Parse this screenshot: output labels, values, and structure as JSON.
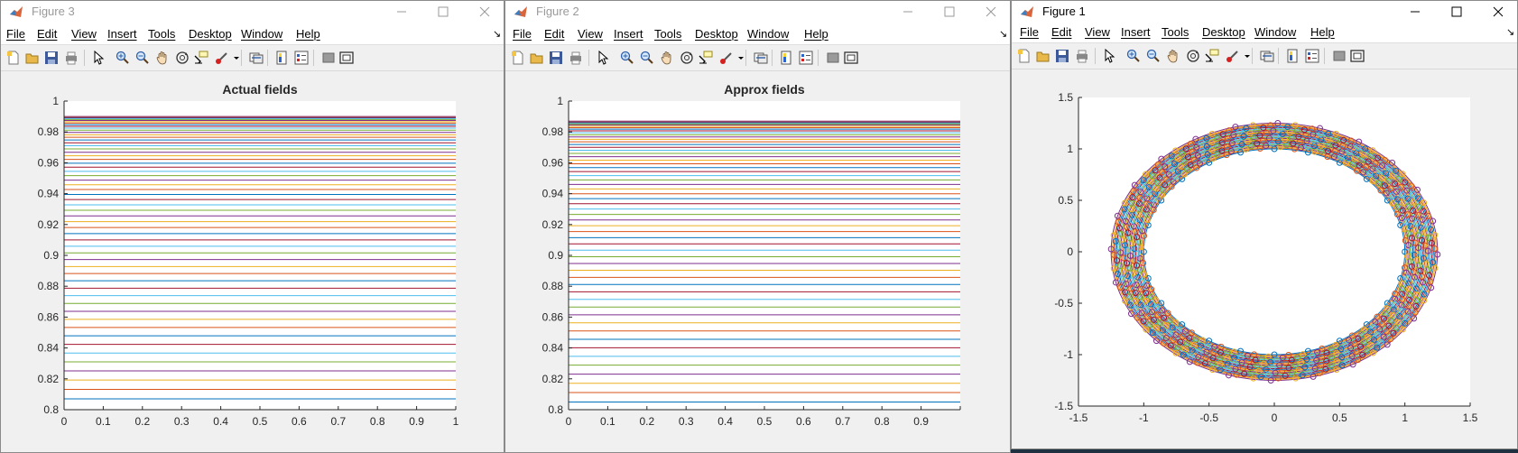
{
  "windows": [
    {
      "title": "Figure 3",
      "active": false,
      "menu": [
        "File",
        "Edit",
        "View",
        "Insert",
        "Tools",
        "Desktop",
        "Window",
        "Help"
      ]
    },
    {
      "title": "Figure 2",
      "active": false,
      "menu": [
        "File",
        "Edit",
        "View",
        "Insert",
        "Tools",
        "Desktop",
        "Window",
        "Help"
      ]
    },
    {
      "title": "Figure 1",
      "active": true,
      "menu": [
        "File",
        "Edit",
        "View",
        "Insert",
        "Tools",
        "Desktop",
        "Window",
        "Help"
      ]
    }
  ],
  "window_controls": [
    "minimize-icon",
    "maximize-icon",
    "close-icon"
  ],
  "toolbar_icons": [
    "new-figure-icon",
    "open-file-icon",
    "save-figure-icon",
    "print-figure-icon",
    "edit-plot-icon",
    "zoom-in-icon",
    "zoom-out-icon",
    "pan-icon",
    "rotate-3d-icon",
    "data-cursor-icon",
    "brush-icon",
    "brush-dropdown-icon",
    "link-plot-icon",
    "insert-colorbar-icon",
    "insert-legend-icon",
    "hide-plot-tools-icon",
    "show-plot-tools-icon"
  ],
  "colors": {
    "matlab_order": [
      "#0072BD",
      "#D95319",
      "#EDB120",
      "#7E2F8E",
      "#77AC30",
      "#4DBEEE",
      "#A2142F"
    ],
    "axes_bg": "#ffffff",
    "figure_bg": "#f0f0f0"
  },
  "chart_data": [
    {
      "type": "line",
      "title": "Actual fields",
      "xlim": [
        0,
        1
      ],
      "ylim": [
        0.8,
        1
      ],
      "xticks": [
        "0",
        "0.1",
        "0.2",
        "0.3",
        "0.4",
        "0.5",
        "0.6",
        "0.7",
        "0.8",
        "0.9",
        "1"
      ],
      "yticks": [
        "0.8",
        "0.82",
        "0.84",
        "0.86",
        "0.88",
        "0.9",
        "0.92",
        "0.94",
        "0.96",
        "0.98",
        "1"
      ],
      "description_of_series": "about 60 horizontal constant lines spanning x 0 to 1",
      "line_levels": {
        "min": 0.807,
        "max": 0.99,
        "count": 60,
        "spacing": "quadratic"
      }
    },
    {
      "type": "line",
      "title": "Approx fields",
      "xlim": [
        0,
        1
      ],
      "ylim": [
        0.8,
        1
      ],
      "xticks": [
        "0",
        "0.1",
        "0.2",
        "0.3",
        "0.4",
        "0.5",
        "0.6",
        "0.7",
        "0.8",
        "0.9",
        ""
      ],
      "yticks": [
        "0.8",
        "0.82",
        "0.84",
        "0.86",
        "0.88",
        "0.9",
        "0.92",
        "0.94",
        "0.96",
        "0.98",
        "1"
      ],
      "description_of_series": "about 60 horizontal constant lines spanning x 0 to 1",
      "line_levels": {
        "min": 0.805,
        "max": 0.987,
        "count": 60,
        "spacing": "quadratic"
      }
    },
    {
      "type": "line",
      "title": "",
      "xlim": [
        -1.5,
        1.5
      ],
      "ylim": [
        -1.5,
        1.5
      ],
      "xticks": [
        "-1.5",
        "-1",
        "-0.5",
        "0",
        "0.5",
        "1",
        "1.5"
      ],
      "yticks": [
        "-1.5",
        "-1",
        "-0.5",
        "0",
        "0.5",
        "1",
        "1.5"
      ],
      "description_of_series": "many concentric circles with circle markers",
      "circles": {
        "r_min": 1.0,
        "r_max": 1.25,
        "count": 25,
        "markers_per_circle": 24
      }
    }
  ]
}
